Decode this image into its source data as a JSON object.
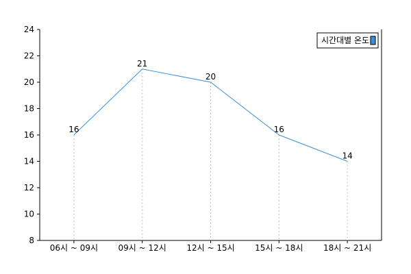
{
  "chart_data": {
    "type": "line",
    "title": "",
    "xlabel": "",
    "ylabel": "",
    "categories": [
      "06시 ~ 09시",
      "09시 ~ 12시",
      "12시 ~ 15시",
      "15시 ~ 18시",
      "18시 ~ 21시"
    ],
    "series": [
      {
        "name": "시간대별 온도",
        "values": [
          16,
          21,
          20,
          16,
          14
        ],
        "color": "#3a8fd8"
      }
    ],
    "ylim": [
      8,
      24
    ],
    "yticks": [
      8,
      10,
      12,
      14,
      16,
      18,
      20,
      22,
      24
    ],
    "grid": false,
    "drop_lines": true,
    "legend_position": "top-right",
    "legend_swatch_color": "#3a8fd8"
  }
}
